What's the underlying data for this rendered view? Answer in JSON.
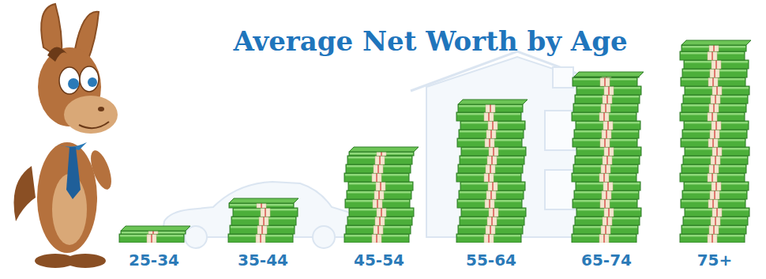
{
  "chart_data": {
    "type": "bar",
    "title": "Average Net Worth by Age",
    "categories": [
      "25-34",
      "35-44",
      "45-54",
      "55-64",
      "65-74",
      "75+"
    ],
    "values": [
      15,
      50,
      115,
      175,
      210,
      250
    ],
    "ylim": [
      0,
      260
    ],
    "grid": false,
    "tick_labels": "x",
    "color": "#4caf3a"
  }
}
